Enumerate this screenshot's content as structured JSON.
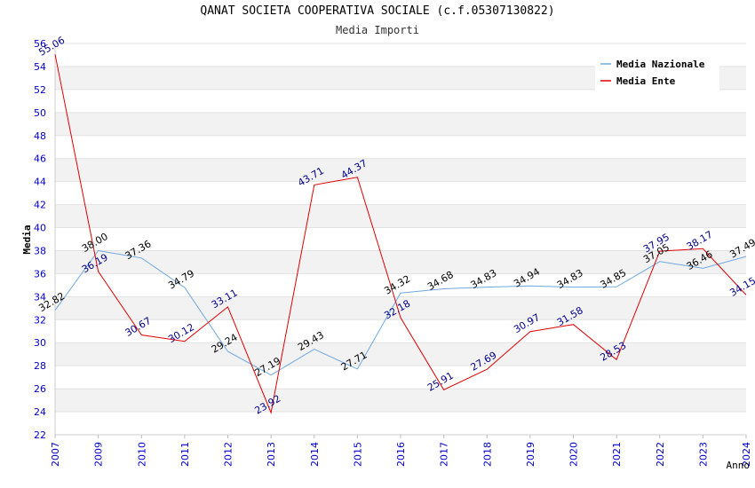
{
  "chart_data": {
    "type": "line",
    "title": "QANAT SOCIETA COOPERATIVA SOCIALE (c.f.05307130822)",
    "subtitle": "Media Importi",
    "ylabel": "Media",
    "xlabel": "Anno",
    "ylim": [
      22,
      56
    ],
    "yticks": [
      22,
      24,
      26,
      28,
      30,
      32,
      34,
      36,
      38,
      40,
      42,
      44,
      46,
      48,
      50,
      52,
      54,
      56
    ],
    "categories": [
      "2007",
      "2009",
      "2010",
      "2011",
      "2012",
      "2013",
      "2014",
      "2015",
      "2016",
      "2017",
      "2018",
      "2019",
      "2020",
      "2021",
      "2022",
      "2023",
      "2024"
    ],
    "series": [
      {
        "name": "Media Nazionale",
        "color": "#6fa8e0",
        "values": [
          32.82,
          38.0,
          37.36,
          34.79,
          29.24,
          27.19,
          29.43,
          27.71,
          34.32,
          34.68,
          34.83,
          34.94,
          34.83,
          34.85,
          37.05,
          36.46,
          37.49
        ],
        "labels": [
          "32.82",
          "38.00",
          "37.36",
          "34.79",
          "29.24",
          "27.19",
          "29.43",
          "27.71",
          "34.32",
          "34.68",
          "34.83",
          "34.94",
          "34.83",
          "34.85",
          "37.05",
          "36.46",
          "37.49"
        ]
      },
      {
        "name": "Media Ente",
        "color": "#e00000",
        "values": [
          55.06,
          36.19,
          30.67,
          30.12,
          33.11,
          23.92,
          43.71,
          44.37,
          32.18,
          25.91,
          27.69,
          30.97,
          31.58,
          28.53,
          37.95,
          38.17,
          34.15
        ],
        "labels": [
          "55.06",
          "36.19",
          "30.67",
          "30.12",
          "33.11",
          "23.92",
          "43.71",
          "44.37",
          "32.18",
          "25.91",
          "27.69",
          "30.97",
          "31.58",
          "28.53",
          "37.95",
          "38.17",
          "34.15"
        ]
      }
    ],
    "legend": "top-right",
    "grid": true
  }
}
